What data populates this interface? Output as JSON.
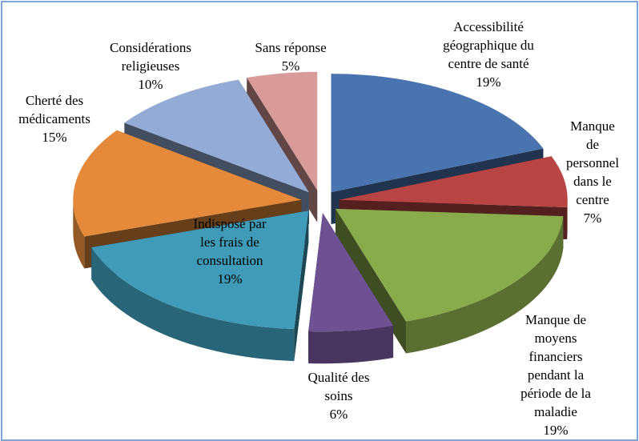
{
  "chart_data": {
    "type": "pie3d",
    "categories": [
      "Accessibilité géographique du centre de santé",
      "Manque de personnel dans le centre",
      "Manque de moyens financiers pendant la période de la maladie",
      "Qualité des soins",
      "Indisposé par les frais de consultation",
      "Cherté des médicaments",
      "Considérations religieuses",
      "Sans réponse"
    ],
    "values": [
      19,
      7,
      19,
      6,
      19,
      15,
      10,
      5
    ],
    "value_labels": [
      "19%",
      "7%",
      "19%",
      "6%",
      "19%",
      "15%",
      "10%",
      "5%"
    ],
    "colors": [
      "#4a74b0",
      "#b84444",
      "#8aab4c",
      "#6e5193",
      "#3f9bb8",
      "#e48a3a",
      "#94abd6",
      "#d99a9a"
    ]
  }
}
